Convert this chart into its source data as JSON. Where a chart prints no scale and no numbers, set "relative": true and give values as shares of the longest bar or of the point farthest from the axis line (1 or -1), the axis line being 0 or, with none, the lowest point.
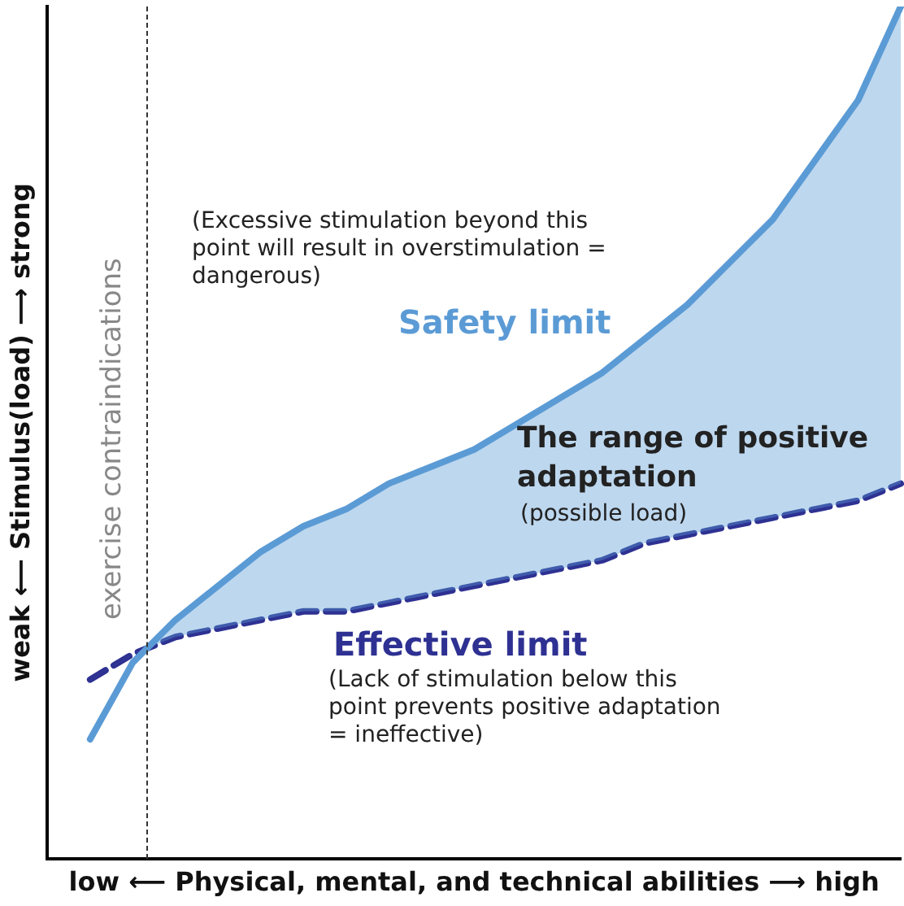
{
  "chart_data": {
    "type": "line",
    "relative": true,
    "xlabel": "low ⟵ Physical, mental, and technical abilities ⟶ high",
    "ylabel": "weak ⟵ Stimulus(load) ⟶ strong",
    "categories": [
      null,
      null,
      null,
      null,
      null,
      null,
      null,
      null,
      null,
      null,
      null,
      null,
      null,
      null,
      null,
      null,
      null,
      null,
      null,
      null,
      null
    ],
    "tick_labels": false,
    "marker": "none",
    "legend": false,
    "series": [
      {
        "name": "Safety limit",
        "color": "#5b9bd5",
        "line_style": "solid",
        "values": [
          null,
          0.14,
          0.23,
          0.28,
          0.32,
          0.36,
          0.39,
          0.41,
          0.44,
          0.46,
          0.48,
          0.51,
          0.54,
          0.57,
          0.61,
          0.65,
          0.7,
          0.75,
          0.82,
          0.89,
          1
        ]
      },
      {
        "name": "Effective limit",
        "color": "#2e3192",
        "line_style": "dashed",
        "values": [
          null,
          0.21,
          0.24,
          0.26,
          0.27,
          0.28,
          0.29,
          0.29,
          0.3,
          0.31,
          0.32,
          0.33,
          0.34,
          0.35,
          0.37,
          0.38,
          0.39,
          0.4,
          0.41,
          0.42,
          0.44
        ]
      }
    ],
    "annotations": [
      "exercise contraindications",
      "(Excessive stimulation beyond this point will result in overstimulation = dangerous)",
      "The range of positive adaptation",
      "(possible load)",
      "(Lack of stimulation below this point prevents positive adaptation = ineffective)"
    ]
  }
}
